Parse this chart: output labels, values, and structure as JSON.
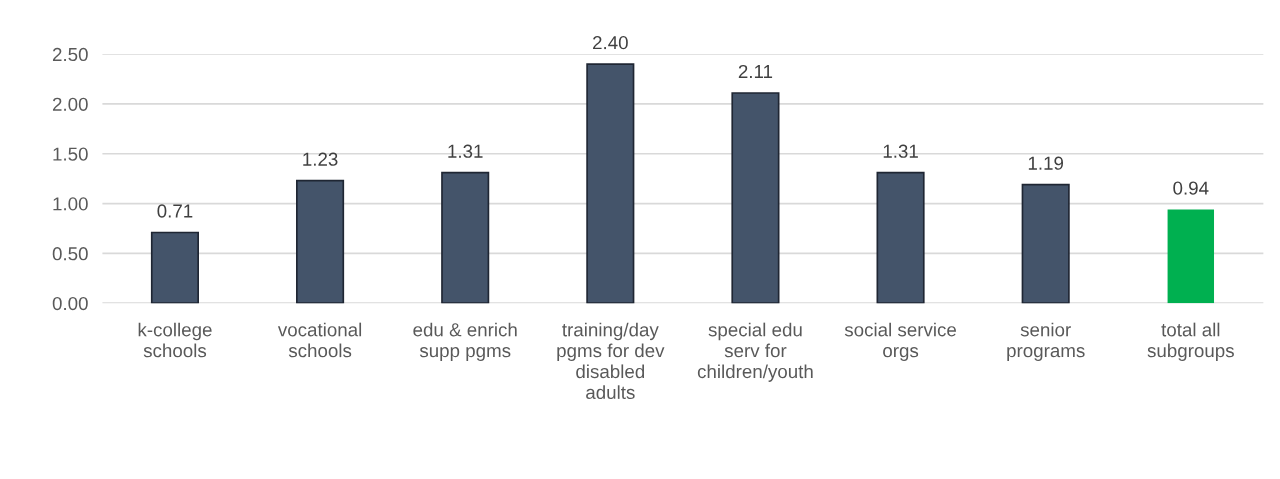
{
  "chart_data": {
    "type": "bar",
    "categories": [
      "k-college\nschools",
      "vocational\nschools",
      "edu & enrich\nsupp pgms",
      "training/day\npgms for dev\ndisabled\nadults",
      "special edu\nserv for\nchildren/youth",
      "social service\norgs",
      "senior\nprograms",
      "total all\nsubgroups"
    ],
    "values": [
      0.71,
      1.23,
      1.31,
      2.4,
      2.11,
      1.31,
      1.19,
      0.94
    ],
    "colors": [
      "#44546a",
      "#44546a",
      "#44546a",
      "#44546a",
      "#44546a",
      "#44546a",
      "#44546a",
      "#00b050"
    ],
    "value_labels": [
      "0.71",
      "1.23",
      "1.31",
      "2.40",
      "2.11",
      "1.31",
      "1.19",
      "0.94"
    ],
    "ylim": [
      0,
      2.5
    ],
    "yticks": [
      {
        "value": 0,
        "label": "0.00"
      },
      {
        "value": 0.5,
        "label": "0.50"
      },
      {
        "value": 1,
        "label": "1.00"
      },
      {
        "value": 1.5,
        "label": "1.50"
      },
      {
        "value": 2,
        "label": "2.00"
      },
      {
        "value": 2.5,
        "label": "2.50"
      }
    ],
    "grid": "y",
    "legend": false
  }
}
